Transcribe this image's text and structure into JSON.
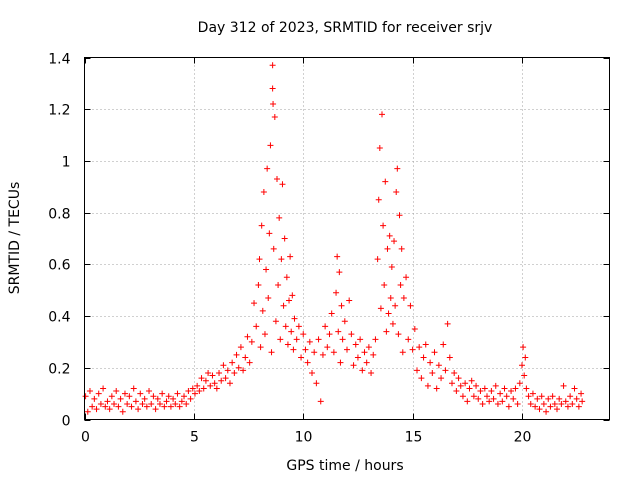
{
  "chart_data": {
    "type": "scatter",
    "title": "Day 312 of 2023, SRMTID for receiver srjv",
    "xlabel": "GPS time / hours",
    "ylabel": "SRMTID / TECUs",
    "xlim": [
      0,
      24
    ],
    "ylim": [
      0,
      1.4
    ],
    "x_ticks": [
      0,
      5,
      10,
      15,
      20
    ],
    "x_tick_labels": [
      "0",
      "5",
      "10",
      "15",
      "20"
    ],
    "y_ticks": [
      0,
      0.2,
      0.4,
      0.6,
      0.8,
      1,
      1.2,
      1.4
    ],
    "y_tick_labels": [
      "0",
      "0.2",
      "0.4",
      "0.6",
      "0.8",
      "1",
      "1.2",
      "1.4"
    ],
    "grid": true,
    "marker": "+",
    "marker_color": "#ff0000",
    "series": [
      {
        "name": "SRMTID",
        "points": [
          [
            0.05,
            0.09
          ],
          [
            0.15,
            0.03
          ],
          [
            0.25,
            0.11
          ],
          [
            0.35,
            0.05
          ],
          [
            0.45,
            0.08
          ],
          [
            0.55,
            0.04
          ],
          [
            0.65,
            0.1
          ],
          [
            0.75,
            0.06
          ],
          [
            0.85,
            0.12
          ],
          [
            0.95,
            0.05
          ],
          [
            1.05,
            0.07
          ],
          [
            1.15,
            0.04
          ],
          [
            1.25,
            0.09
          ],
          [
            1.35,
            0.06
          ],
          [
            1.45,
            0.11
          ],
          [
            1.55,
            0.05
          ],
          [
            1.65,
            0.08
          ],
          [
            1.75,
            0.03
          ],
          [
            1.85,
            0.1
          ],
          [
            1.95,
            0.06
          ],
          [
            2.05,
            0.09
          ],
          [
            2.15,
            0.05
          ],
          [
            2.25,
            0.12
          ],
          [
            2.35,
            0.07
          ],
          [
            2.45,
            0.04
          ],
          [
            2.55,
            0.1
          ],
          [
            2.65,
            0.06
          ],
          [
            2.75,
            0.08
          ],
          [
            2.85,
            0.05
          ],
          [
            2.95,
            0.11
          ],
          [
            3.05,
            0.06
          ],
          [
            3.15,
            0.09
          ],
          [
            3.25,
            0.04
          ],
          [
            3.35,
            0.08
          ],
          [
            3.45,
            0.06
          ],
          [
            3.55,
            0.1
          ],
          [
            3.65,
            0.05
          ],
          [
            3.75,
            0.07
          ],
          [
            3.85,
            0.09
          ],
          [
            3.95,
            0.05
          ],
          [
            4.05,
            0.08
          ],
          [
            4.15,
            0.06
          ],
          [
            4.25,
            0.1
          ],
          [
            4.35,
            0.05
          ],
          [
            4.45,
            0.07
          ],
          [
            4.55,
            0.09
          ],
          [
            4.65,
            0.06
          ],
          [
            4.75,
            0.11
          ],
          [
            4.85,
            0.08
          ],
          [
            4.95,
            0.12
          ],
          [
            5.05,
            0.1
          ],
          [
            5.15,
            0.13
          ],
          [
            5.25,
            0.11
          ],
          [
            5.35,
            0.16
          ],
          [
            5.45,
            0.12
          ],
          [
            5.55,
            0.15
          ],
          [
            5.65,
            0.18
          ],
          [
            5.75,
            0.13
          ],
          [
            5.85,
            0.17
          ],
          [
            5.95,
            0.14
          ],
          [
            6.05,
            0.12
          ],
          [
            6.15,
            0.18
          ],
          [
            6.25,
            0.15
          ],
          [
            6.35,
            0.21
          ],
          [
            6.45,
            0.16
          ],
          [
            6.55,
            0.19
          ],
          [
            6.65,
            0.14
          ],
          [
            6.75,
            0.22
          ],
          [
            6.85,
            0.18
          ],
          [
            6.95,
            0.25
          ],
          [
            7.05,
            0.2
          ],
          [
            7.15,
            0.28
          ],
          [
            7.25,
            0.19
          ],
          [
            7.35,
            0.24
          ],
          [
            7.45,
            0.32
          ],
          [
            7.55,
            0.22
          ],
          [
            7.65,
            0.3
          ],
          [
            7.75,
            0.45
          ],
          [
            7.85,
            0.36
          ],
          [
            7.95,
            0.52
          ],
          [
            8.0,
            0.62
          ],
          [
            8.05,
            0.28
          ],
          [
            8.1,
            0.75
          ],
          [
            8.15,
            0.42
          ],
          [
            8.2,
            0.88
          ],
          [
            8.25,
            0.33
          ],
          [
            8.3,
            0.58
          ],
          [
            8.35,
            0.97
          ],
          [
            8.4,
            0.47
          ],
          [
            8.45,
            0.72
          ],
          [
            8.5,
            1.06
          ],
          [
            8.55,
            0.26
          ],
          [
            8.6,
            1.37
          ],
          [
            8.6,
            1.28
          ],
          [
            8.62,
            1.22
          ],
          [
            8.65,
            0.66
          ],
          [
            8.7,
            1.17
          ],
          [
            8.75,
            0.38
          ],
          [
            8.8,
            0.93
          ],
          [
            8.85,
            0.52
          ],
          [
            8.9,
            0.78
          ],
          [
            8.95,
            0.31
          ],
          [
            9.0,
            0.62
          ],
          [
            9.05,
            0.91
          ],
          [
            9.1,
            0.44
          ],
          [
            9.15,
            0.7
          ],
          [
            9.2,
            0.36
          ],
          [
            9.25,
            0.55
          ],
          [
            9.3,
            0.29
          ],
          [
            9.35,
            0.46
          ],
          [
            9.4,
            0.63
          ],
          [
            9.45,
            0.34
          ],
          [
            9.5,
            0.48
          ],
          [
            9.55,
            0.27
          ],
          [
            9.6,
            0.39
          ],
          [
            9.7,
            0.31
          ],
          [
            9.8,
            0.36
          ],
          [
            9.9,
            0.24
          ],
          [
            10.0,
            0.33
          ],
          [
            10.1,
            0.27
          ],
          [
            10.2,
            0.22
          ],
          [
            10.3,
            0.3
          ],
          [
            10.4,
            0.18
          ],
          [
            10.5,
            0.26
          ],
          [
            10.6,
            0.14
          ],
          [
            10.7,
            0.31
          ],
          [
            10.8,
            0.07
          ],
          [
            10.9,
            0.25
          ],
          [
            11.0,
            0.36
          ],
          [
            11.1,
            0.28
          ],
          [
            11.2,
            0.33
          ],
          [
            11.3,
            0.41
          ],
          [
            11.4,
            0.26
          ],
          [
            11.5,
            0.49
          ],
          [
            11.55,
            0.63
          ],
          [
            11.6,
            0.34
          ],
          [
            11.65,
            0.57
          ],
          [
            11.7,
            0.22
          ],
          [
            11.75,
            0.44
          ],
          [
            11.8,
            0.31
          ],
          [
            11.9,
            0.38
          ],
          [
            12.0,
            0.27
          ],
          [
            12.1,
            0.46
          ],
          [
            12.2,
            0.33
          ],
          [
            12.3,
            0.21
          ],
          [
            12.4,
            0.29
          ],
          [
            12.5,
            0.24
          ],
          [
            12.6,
            0.31
          ],
          [
            12.7,
            0.19
          ],
          [
            12.8,
            0.26
          ],
          [
            12.9,
            0.22
          ],
          [
            13.0,
            0.28
          ],
          [
            13.1,
            0.18
          ],
          [
            13.2,
            0.25
          ],
          [
            13.3,
            0.31
          ],
          [
            13.4,
            0.62
          ],
          [
            13.45,
            0.85
          ],
          [
            13.5,
            1.05
          ],
          [
            13.55,
            0.43
          ],
          [
            13.6,
            1.18
          ],
          [
            13.65,
            0.75
          ],
          [
            13.7,
            0.52
          ],
          [
            13.75,
            0.92
          ],
          [
            13.8,
            0.34
          ],
          [
            13.85,
            0.66
          ],
          [
            13.9,
            0.41
          ],
          [
            13.95,
            0.71
          ],
          [
            14.0,
            0.47
          ],
          [
            14.05,
            0.59
          ],
          [
            14.1,
            0.37
          ],
          [
            14.15,
            0.69
          ],
          [
            14.2,
            0.44
          ],
          [
            14.25,
            0.88
          ],
          [
            14.3,
            0.97
          ],
          [
            14.35,
            0.33
          ],
          [
            14.4,
            0.79
          ],
          [
            14.45,
            0.52
          ],
          [
            14.5,
            0.66
          ],
          [
            14.55,
            0.26
          ],
          [
            14.6,
            0.47
          ],
          [
            14.7,
            0.55
          ],
          [
            14.8,
            0.31
          ],
          [
            14.9,
            0.44
          ],
          [
            15.0,
            0.27
          ],
          [
            15.1,
            0.35
          ],
          [
            15.2,
            0.19
          ],
          [
            15.3,
            0.28
          ],
          [
            15.4,
            0.16
          ],
          [
            15.5,
            0.24
          ],
          [
            15.6,
            0.29
          ],
          [
            15.7,
            0.13
          ],
          [
            15.8,
            0.22
          ],
          [
            15.9,
            0.18
          ],
          [
            16.0,
            0.26
          ],
          [
            16.1,
            0.12
          ],
          [
            16.2,
            0.21
          ],
          [
            16.3,
            0.16
          ],
          [
            16.4,
            0.29
          ],
          [
            16.5,
            0.19
          ],
          [
            16.6,
            0.37
          ],
          [
            16.7,
            0.24
          ],
          [
            16.8,
            0.14
          ],
          [
            16.9,
            0.18
          ],
          [
            17.0,
            0.11
          ],
          [
            17.1,
            0.16
          ],
          [
            17.2,
            0.13
          ],
          [
            17.3,
            0.09
          ],
          [
            17.4,
            0.14
          ],
          [
            17.5,
            0.07
          ],
          [
            17.6,
            0.12
          ],
          [
            17.7,
            0.15
          ],
          [
            17.8,
            0.09
          ],
          [
            17.9,
            0.13
          ],
          [
            18.0,
            0.08
          ],
          [
            18.1,
            0.11
          ],
          [
            18.2,
            0.06
          ],
          [
            18.3,
            0.12
          ],
          [
            18.4,
            0.09
          ],
          [
            18.5,
            0.07
          ],
          [
            18.6,
            0.11
          ],
          [
            18.7,
            0.08
          ],
          [
            18.8,
            0.13
          ],
          [
            18.9,
            0.06
          ],
          [
            19.0,
            0.1
          ],
          [
            19.1,
            0.07
          ],
          [
            19.2,
            0.12
          ],
          [
            19.3,
            0.09
          ],
          [
            19.4,
            0.05
          ],
          [
            19.5,
            0.11
          ],
          [
            19.6,
            0.08
          ],
          [
            19.7,
            0.12
          ],
          [
            19.8,
            0.06
          ],
          [
            19.9,
            0.14
          ],
          [
            20.0,
            0.21
          ],
          [
            20.05,
            0.28
          ],
          [
            20.1,
            0.17
          ],
          [
            20.15,
            0.24
          ],
          [
            20.2,
            0.12
          ],
          [
            20.3,
            0.09
          ],
          [
            20.4,
            0.06
          ],
          [
            20.5,
            0.1
          ],
          [
            20.6,
            0.05
          ],
          [
            20.7,
            0.08
          ],
          [
            20.8,
            0.04
          ],
          [
            20.9,
            0.09
          ],
          [
            21.0,
            0.06
          ],
          [
            21.1,
            0.03
          ],
          [
            21.2,
            0.08
          ],
          [
            21.3,
            0.05
          ],
          [
            21.4,
            0.09
          ],
          [
            21.5,
            0.06
          ],
          [
            21.6,
            0.04
          ],
          [
            21.7,
            0.08
          ],
          [
            21.8,
            0.06
          ],
          [
            21.9,
            0.13
          ],
          [
            22.0,
            0.07
          ],
          [
            22.1,
            0.05
          ],
          [
            22.2,
            0.09
          ],
          [
            22.3,
            0.06
          ],
          [
            22.4,
            0.12
          ],
          [
            22.5,
            0.08
          ],
          [
            22.6,
            0.05
          ],
          [
            22.7,
            0.1
          ],
          [
            22.75,
            0.07
          ]
        ]
      }
    ]
  }
}
